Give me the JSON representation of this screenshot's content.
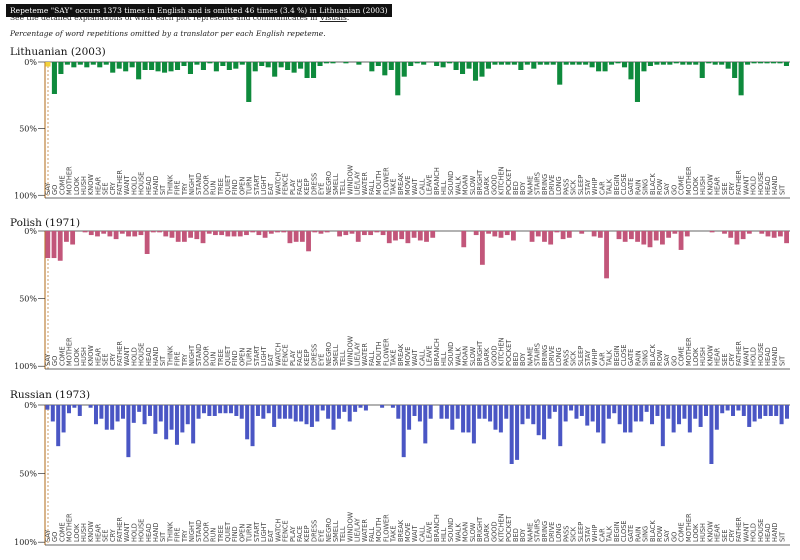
{
  "tooltip": "Repeteme \"SAY\" occurs 1373 times in English and is omitted 46 times (3.4 %) in Lithuanian (2003)",
  "intro": {
    "text": "See the detailed explanations of what each plot represents and communicates in ",
    "link": "Visuals"
  },
  "subtitle": "Percentage of word repetitions omitted by a translator per each English repeteme.",
  "colors": {
    "lithuanian": "#0e8a3c",
    "polish": "#c2567a",
    "russian": "#4a56c4",
    "highlight": "#f2d13a",
    "axis": "#b8762a"
  },
  "chart_data": [
    {
      "type": "bar",
      "title": "Lithuanian (2003)",
      "ylim": [
        0,
        100
      ],
      "yticks": [
        "0%",
        "50%",
        "100%"
      ],
      "series": [
        {
          "color": "#0e8a3c",
          "highlighted_index": 0,
          "values": [
            3.4,
            24,
            9,
            2,
            4,
            2,
            4,
            2,
            4,
            2,
            8,
            5,
            7,
            4,
            13,
            6,
            6,
            7,
            8,
            7,
            6,
            3,
            9,
            2,
            6,
            1,
            7,
            3,
            6,
            5,
            2,
            30,
            7,
            3,
            4,
            11,
            4,
            6,
            8,
            5,
            12,
            12,
            3,
            1,
            1,
            0,
            1,
            0,
            2,
            0,
            7,
            3,
            10,
            6,
            25,
            11,
            3,
            1,
            2,
            0,
            3,
            4,
            1,
            6,
            9,
            5,
            14,
            11,
            5,
            2,
            2,
            2,
            2,
            6,
            2,
            5,
            2,
            2,
            2,
            17,
            2,
            2,
            2,
            2,
            4,
            7,
            7,
            2,
            1,
            4,
            13,
            30,
            7,
            3,
            2,
            2,
            2,
            1,
            2,
            2,
            2,
            12,
            1,
            2,
            2,
            5,
            12,
            25,
            2,
            1,
            1,
            1,
            1,
            1,
            3
          ]
        }
      ]
    },
    {
      "type": "bar",
      "title": "Polish (1971)",
      "ylim": [
        0,
        100
      ],
      "yticks": [
        "0%",
        "50%",
        "100%"
      ],
      "series": [
        {
          "color": "#c2567a",
          "highlighted_index": 0,
          "values": [
            20,
            20,
            22,
            8,
            10,
            0,
            1,
            3,
            4,
            2,
            4,
            6,
            2,
            4,
            4,
            3,
            17,
            1,
            1,
            4,
            5,
            8,
            8,
            5,
            6,
            9,
            2,
            3,
            3,
            4,
            4,
            4,
            3,
            1,
            3,
            5,
            2,
            1,
            1,
            9,
            8,
            8,
            15,
            1,
            2,
            1,
            0,
            4,
            3,
            2,
            8,
            3,
            3,
            1,
            3,
            9,
            7,
            6,
            9,
            5,
            7,
            8,
            5,
            0,
            0,
            0,
            0,
            12,
            0,
            3,
            25,
            2,
            4,
            5,
            3,
            7,
            0,
            0,
            8,
            4,
            8,
            10,
            1,
            6,
            5,
            0,
            2,
            0,
            4,
            5,
            35,
            0,
            6,
            8,
            6,
            8,
            10,
            12,
            7,
            10,
            5,
            2,
            14,
            4,
            0,
            0,
            0,
            1,
            0,
            2,
            5,
            10,
            6,
            2,
            0,
            2,
            4,
            5,
            4,
            9
          ]
        }
      ]
    },
    {
      "type": "bar",
      "title": "Russian (1973)",
      "ylim": [
        0,
        100
      ],
      "yticks": [
        "0%",
        "50%",
        "100%"
      ],
      "series": [
        {
          "color": "#4a56c4",
          "highlighted_index": 0,
          "values": [
            3.4,
            12,
            30,
            20,
            6,
            2,
            8,
            0,
            2,
            14,
            10,
            18,
            18,
            12,
            10,
            38,
            13,
            5,
            14,
            8,
            21,
            12,
            25,
            18,
            29,
            20,
            14,
            28,
            10,
            6,
            8,
            8,
            6,
            6,
            6,
            8,
            10,
            25,
            30,
            8,
            10,
            6,
            16,
            10,
            10,
            10,
            12,
            12,
            14,
            16,
            12,
            4,
            10,
            18,
            10,
            5,
            12,
            5,
            2,
            4,
            0,
            0,
            2,
            0,
            2,
            10,
            38,
            18,
            8,
            12,
            28,
            10,
            0,
            10,
            10,
            18,
            10,
            20,
            20,
            28,
            10,
            10,
            12,
            18,
            20,
            10,
            43,
            40,
            14,
            10,
            14,
            22,
            25,
            10,
            5,
            30,
            12,
            4,
            10,
            8,
            15,
            12,
            20,
            28,
            10,
            6,
            14,
            20,
            20,
            12,
            12,
            5,
            14,
            8,
            30,
            10,
            20,
            14,
            10,
            20,
            10,
            16,
            8,
            43,
            18,
            6,
            4,
            8,
            4,
            8,
            16,
            12,
            10,
            8,
            8,
            8,
            14,
            10
          ]
        }
      ]
    }
  ],
  "words": [
    "SAY",
    "GO",
    "COME",
    "MOTHER",
    "LOOK",
    "HUSH",
    "KNOW",
    "HEAR",
    "SEE",
    "CRY",
    "FATHER",
    "WANT",
    "HOLD",
    "HOUSE",
    "HEAD",
    "HAND",
    "SIT",
    "THINK",
    "FIRE",
    "TRY",
    "NIGHT",
    "STAND",
    "DOOR",
    "RUN",
    "TREE",
    "QUIET",
    "FIND",
    "OPEN",
    "TURN",
    "START",
    "LIGHT",
    "EAT",
    "WATCH",
    "FENCE",
    "PLAY",
    "FACE",
    "KEEP",
    "DRESS",
    "EYE",
    "NEGRO",
    "SMELL",
    "TELL",
    "WINDOW",
    "LIE/LAY",
    "WATER",
    "FALL",
    "MOUTH",
    "FLOWER",
    "TAKE",
    "BREAK",
    "MOVE",
    "WAIT",
    "CALL",
    "LEAVE",
    "BRANCH",
    "HILL",
    "SOUND",
    "WALK",
    "MOAN",
    "SLOW",
    "BRIGHT",
    "DARK",
    "GOOD",
    "KITCHEN",
    "POCKET",
    "BED",
    "BOY",
    "NAME",
    "STAIRS",
    "BRING",
    "DRIVE",
    "LONG",
    "PASS",
    "SICK",
    "SLEEP",
    "STAY",
    "WHIP",
    "CAR",
    "TALK",
    "BEGIN",
    "CLOSE",
    "GATE",
    "RAIN",
    "SING",
    "BLACK",
    "ROW"
  ]
}
